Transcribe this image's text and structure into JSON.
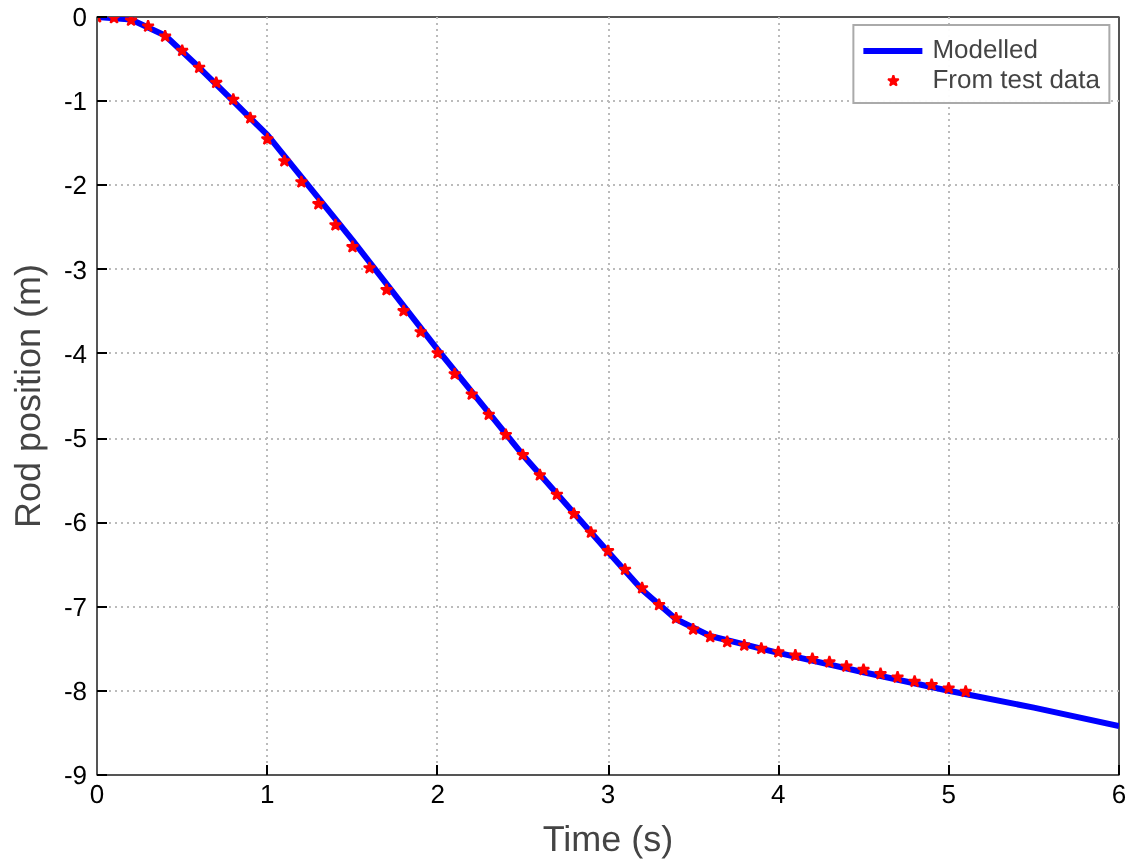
{
  "chart_data": {
    "type": "line",
    "xlabel": "Time (s)",
    "ylabel": "Rod position (m)",
    "xlim": [
      0,
      6
    ],
    "ylim": [
      -9,
      0
    ],
    "xticks": [
      0,
      1,
      2,
      3,
      4,
      5,
      6
    ],
    "yticks": [
      -9,
      -8,
      -7,
      -6,
      -5,
      -4,
      -3,
      -2,
      -1,
      0
    ],
    "grid": true,
    "legend": "top right",
    "line_style": "solid",
    "series": [
      {
        "name": "Modelled",
        "color": "#0000ff",
        "marker": "none",
        "x": [
          0,
          0.2,
          0.4,
          0.6,
          0.8,
          1,
          1.5,
          2,
          2.5,
          3,
          3.2,
          3.4,
          3.6,
          3.8,
          4,
          4.5,
          5,
          5.5,
          6
        ],
        "values": [
          0,
          -0.03,
          -0.22,
          -0.6,
          -1.0,
          -1.4,
          -2.65,
          -3.95,
          -5.2,
          -6.35,
          -6.8,
          -7.15,
          -7.35,
          -7.45,
          -7.55,
          -7.78,
          -8.0,
          -8.2,
          -8.42
        ]
      },
      {
        "name": "From test data",
        "type": "scatter",
        "color": "#ff0000",
        "marker": "star",
        "x": [
          0,
          0.1,
          0.2,
          0.3,
          0.4,
          0.5,
          0.6,
          0.7,
          0.8,
          0.9,
          1.0,
          1.1,
          1.2,
          1.3,
          1.4,
          1.5,
          1.6,
          1.7,
          1.8,
          1.9,
          2.0,
          2.1,
          2.2,
          2.3,
          2.4,
          2.5,
          2.6,
          2.7,
          2.8,
          2.9,
          3.0,
          3.1,
          3.2,
          3.3,
          3.4,
          3.5,
          3.6,
          3.7,
          3.8,
          3.9,
          4.0,
          4.1,
          4.2,
          4.3,
          4.4,
          4.5,
          4.6,
          4.7,
          4.8,
          4.9,
          5.0,
          5.1
        ],
        "values": [
          0,
          -0.01,
          -0.04,
          -0.11,
          -0.23,
          -0.4,
          -0.6,
          -0.78,
          -0.98,
          -1.2,
          -1.45,
          -1.71,
          -1.96,
          -2.22,
          -2.47,
          -2.73,
          -2.98,
          -3.24,
          -3.49,
          -3.74,
          -3.99,
          -4.24,
          -4.48,
          -4.72,
          -4.96,
          -5.2,
          -5.44,
          -5.67,
          -5.9,
          -6.12,
          -6.34,
          -6.56,
          -6.78,
          -6.98,
          -7.14,
          -7.27,
          -7.36,
          -7.42,
          -7.46,
          -7.5,
          -7.54,
          -7.58,
          -7.62,
          -7.66,
          -7.71,
          -7.75,
          -7.8,
          -7.84,
          -7.89,
          -7.93,
          -7.97,
          -8.01
        ]
      }
    ]
  }
}
